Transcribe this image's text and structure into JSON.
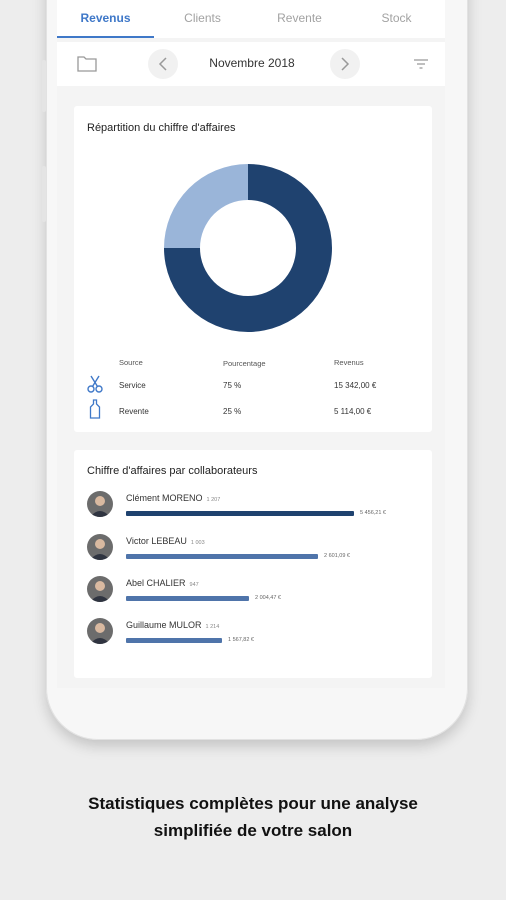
{
  "colors": {
    "accent": "#3f78c8",
    "donut_dark": "#1f426f",
    "donut_light": "#9ab5d9",
    "bar_top": "#1f426f",
    "bar_other": "#4f74aa"
  },
  "tabs": [
    {
      "label": "Revenus",
      "active": true
    },
    {
      "label": "Clients",
      "active": false
    },
    {
      "label": "Revente",
      "active": false
    },
    {
      "label": "Stock",
      "active": false
    }
  ],
  "month": {
    "label": "Novembre 2018"
  },
  "revenue_card": {
    "title": "Répartition du chiffre d'affaires",
    "columns": {
      "source": "Source",
      "percent": "Pourcentage",
      "revenue": "Revenus"
    },
    "rows": [
      {
        "icon": "scissors-icon",
        "source": "Service",
        "percent": "75 %",
        "revenue": "15 342,00 €"
      },
      {
        "icon": "bottle-icon",
        "source": "Revente",
        "percent": "25 %",
        "revenue": "5 114,00 €"
      }
    ]
  },
  "chart_data": {
    "type": "pie",
    "labels": [
      "Service",
      "Revente"
    ],
    "values": [
      75,
      25
    ]
  },
  "collab_card": {
    "title": "Chiffre d'affaires par collaborateurs",
    "items": [
      {
        "name": "Clément MORENO",
        "count": "1 207",
        "value": "5 456,21 €",
        "share": 1.0
      },
      {
        "name": "Victor LEBEAU",
        "count": "1 003",
        "value": "2 601,09 €",
        "share": 0.84
      },
      {
        "name": "Abel CHALIER",
        "count": "947",
        "value": "2 004,47 €",
        "share": 0.54
      },
      {
        "name": "Guillaume MULOR",
        "count": "1 214",
        "value": "1 567,82 €",
        "share": 0.42
      }
    ]
  },
  "caption": {
    "line1": "Statistiques complètes pour une analyse",
    "line2": "simplifiée de votre salon"
  }
}
